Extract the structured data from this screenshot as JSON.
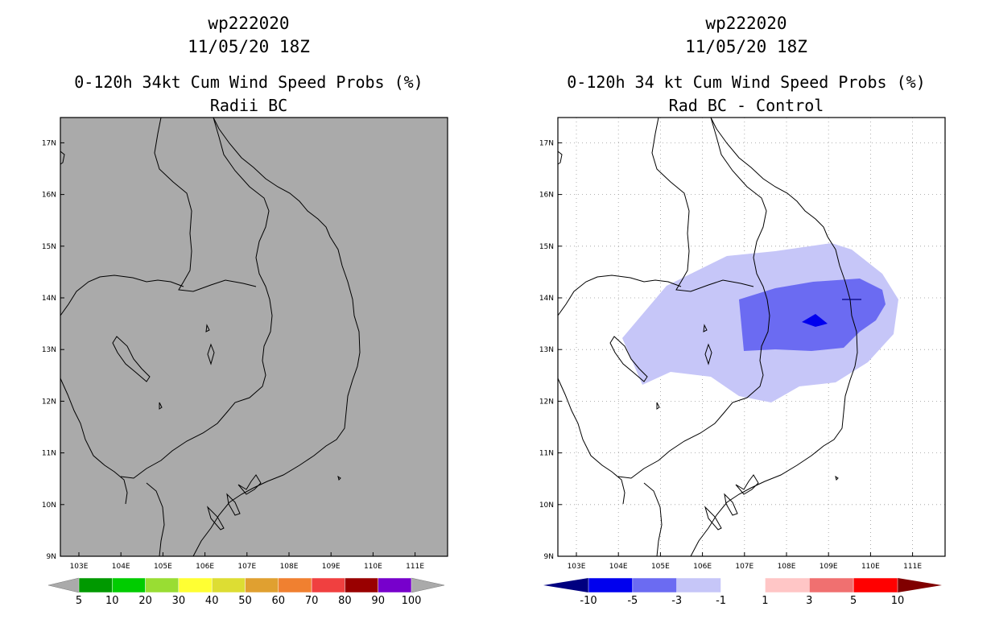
{
  "left": {
    "title_line1": "wp222020",
    "title_line2": "11/05/20 18Z",
    "title_line3": "0-120h 34kt Cum Wind Speed Probs (%)",
    "title_line4": "Radii BC",
    "colors": [
      "#009900",
      "#00cc00",
      "#99dd33",
      "#ffff33",
      "#dddd33",
      "#e0a030",
      "#f08030",
      "#f04040",
      "#990000",
      "#7700cc"
    ],
    "labels": [
      "5",
      "10",
      "20",
      "30",
      "40",
      "50",
      "60",
      "70",
      "80",
      "90",
      "100"
    ]
  },
  "right": {
    "title_line1": "wp222020",
    "title_line2": "11/05/20 18Z",
    "title_line3": "0-120h 34 kt Cum Wind Speed Probs (%)",
    "title_line4": "Rad BC - Control",
    "colors": [
      "#0000ee",
      "#6b6bf2",
      "#c6c6f8",
      "#ffffff",
      "#ffc6c6",
      "#f07070",
      "#ff0000"
    ],
    "labels": [
      "-10",
      "-5",
      "-3",
      "-1",
      "1",
      "3",
      "5",
      "10"
    ],
    "shade_colors": {
      "light": "#c6c6f8",
      "medium": "#6b6bf2",
      "dark": "#0000ee"
    }
  },
  "lat_labels": [
    "9N",
    "10N",
    "11N",
    "12N",
    "13N",
    "14N",
    "15N",
    "16N",
    "17N"
  ],
  "lon_labels": [
    "103E",
    "104E",
    "105E",
    "106E",
    "107E",
    "108E",
    "109E",
    "110E",
    "111E"
  ],
  "map_background": "#aaaaaa"
}
